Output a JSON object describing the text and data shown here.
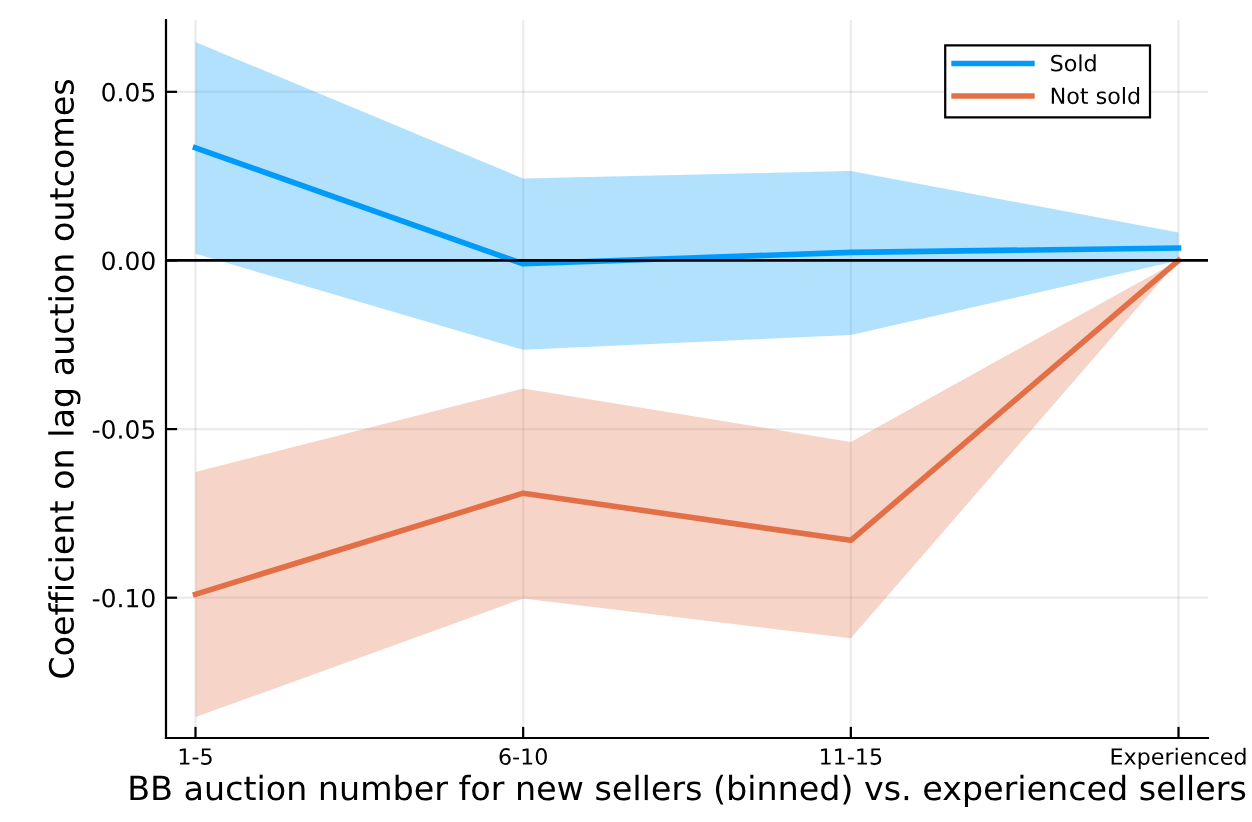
{
  "chart_data": {
    "type": "line",
    "xlabel": "BB auction number for new sellers (binned) vs. experienced sellers",
    "ylabel": "Coefficient on lag auction outcomes",
    "categories": [
      "1-5",
      "6-10",
      "11-15",
      "Experienced"
    ],
    "series": [
      {
        "name": "Sold",
        "color": "#009af9",
        "values": [
          0.0334,
          -0.001,
          0.0024,
          0.0037
        ],
        "lower": [
          0.002,
          -0.0265,
          -0.0221,
          0.0
        ],
        "upper": [
          0.0648,
          0.0243,
          0.0265,
          0.0083
        ]
      },
      {
        "name": "Not sold",
        "color": "#e26f46",
        "values": [
          -0.099,
          -0.069,
          -0.083,
          0.0
        ],
        "lower": [
          -0.1354,
          -0.1002,
          -0.112,
          0.0
        ],
        "upper": [
          -0.0627,
          -0.038,
          -0.0538,
          0.0
        ]
      }
    ],
    "ylim": [
      -0.1416,
      0.0713
    ],
    "yticks": [
      {
        "value": 0.05,
        "label": "0.05"
      },
      {
        "value": 0.0,
        "label": "0.00"
      },
      {
        "value": -0.05,
        "label": "-0.05"
      },
      {
        "value": -0.1,
        "label": "-0.10"
      }
    ],
    "ref_lines": [
      {
        "axis": "y",
        "value": 0,
        "color": "#000000",
        "line_style": "solid"
      }
    ],
    "grid": true,
    "legend": "top right",
    "marker": "none",
    "line_style": "solid"
  }
}
